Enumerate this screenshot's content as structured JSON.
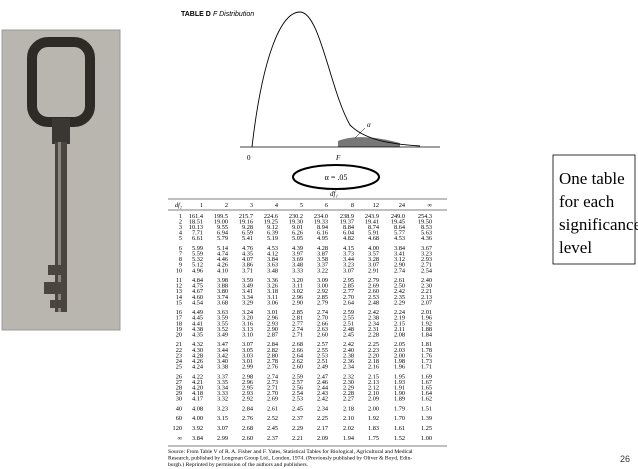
{
  "header": {
    "table_label": "TABLE D",
    "table_title": "F Distribution",
    "slide_number": "26"
  },
  "figure": {
    "origin_label": "0",
    "f_label": "F",
    "alpha_label": "α",
    "alpha_value": "α = .05",
    "df1_label": "df₁"
  },
  "side_note": {
    "lines": [
      "One table",
      "for each",
      "significance",
      "level"
    ]
  },
  "table": {
    "header": [
      "df₂",
      "1",
      "2",
      "3",
      "4",
      "5",
      "6",
      "8",
      "12",
      "24",
      "∞"
    ],
    "rows": [
      [
        "1",
        "161.4",
        "199.5",
        "215.7",
        "224.6",
        "230.2",
        "234.0",
        "238.9",
        "243.9",
        "249.0",
        "254.3"
      ],
      [
        "2",
        "18.51",
        "19.00",
        "19.16",
        "19.25",
        "19.30",
        "19.33",
        "19.37",
        "19.41",
        "19.45",
        "19.50"
      ],
      [
        "3",
        "10.13",
        "9.55",
        "9.28",
        "9.12",
        "9.01",
        "8.94",
        "8.84",
        "8.74",
        "8.64",
        "8.53"
      ],
      [
        "4",
        "7.71",
        "6.94",
        "6.59",
        "6.39",
        "6.26",
        "6.16",
        "6.04",
        "5.91",
        "5.77",
        "5.63"
      ],
      [
        "5",
        "6.61",
        "5.79",
        "5.41",
        "5.19",
        "5.05",
        "4.95",
        "4.82",
        "4.68",
        "4.53",
        "4.36"
      ],
      [
        "6",
        "5.99",
        "5.14",
        "4.76",
        "4.53",
        "4.39",
        "4.28",
        "4.15",
        "4.00",
        "3.84",
        "3.67"
      ],
      [
        "7",
        "5.59",
        "4.74",
        "4.35",
        "4.12",
        "3.97",
        "3.87",
        "3.73",
        "3.57",
        "3.41",
        "3.23"
      ],
      [
        "8",
        "5.32",
        "4.46",
        "4.07",
        "3.84",
        "3.69",
        "3.58",
        "3.44",
        "3.28",
        "3.12",
        "2.93"
      ],
      [
        "9",
        "5.12",
        "4.26",
        "3.86",
        "3.63",
        "3.48",
        "3.37",
        "3.23",
        "3.07",
        "2.90",
        "2.71"
      ],
      [
        "10",
        "4.96",
        "4.10",
        "3.71",
        "3.48",
        "3.33",
        "3.22",
        "3.07",
        "2.91",
        "2.74",
        "2.54"
      ],
      [
        "11",
        "4.84",
        "3.98",
        "3.59",
        "3.36",
        "3.20",
        "3.09",
        "2.95",
        "2.79",
        "2.61",
        "2.40"
      ],
      [
        "12",
        "4.75",
        "3.88",
        "3.49",
        "3.26",
        "3.11",
        "3.00",
        "2.85",
        "2.69",
        "2.50",
        "2.30"
      ],
      [
        "13",
        "4.67",
        "3.80",
        "3.41",
        "3.18",
        "3.02",
        "2.92",
        "2.77",
        "2.60",
        "2.42",
        "2.21"
      ],
      [
        "14",
        "4.60",
        "3.74",
        "3.34",
        "3.11",
        "2.96",
        "2.85",
        "2.70",
        "2.53",
        "2.35",
        "2.13"
      ],
      [
        "15",
        "4.54",
        "3.68",
        "3.29",
        "3.06",
        "2.90",
        "2.79",
        "2.64",
        "2.48",
        "2.29",
        "2.07"
      ],
      [
        "16",
        "4.49",
        "3.63",
        "3.24",
        "3.01",
        "2.85",
        "2.74",
        "2.59",
        "2.42",
        "2.24",
        "2.01"
      ],
      [
        "17",
        "4.45",
        "3.59",
        "3.20",
        "2.96",
        "2.81",
        "2.70",
        "2.55",
        "2.38",
        "2.19",
        "1.96"
      ],
      [
        "18",
        "4.41",
        "3.55",
        "3.16",
        "2.93",
        "2.77",
        "2.66",
        "2.51",
        "2.34",
        "2.15",
        "1.92"
      ],
      [
        "19",
        "4.38",
        "3.52",
        "3.13",
        "2.90",
        "2.74",
        "2.63",
        "2.48",
        "2.31",
        "2.11",
        "1.88"
      ],
      [
        "20",
        "4.35",
        "3.49",
        "3.10",
        "2.87",
        "2.71",
        "2.60",
        "2.45",
        "2.28",
        "2.08",
        "1.84"
      ],
      [
        "21",
        "4.32",
        "3.47",
        "3.07",
        "2.84",
        "2.68",
        "2.57",
        "2.42",
        "2.25",
        "2.05",
        "1.81"
      ],
      [
        "22",
        "4.30",
        "3.44",
        "3.05",
        "2.82",
        "2.66",
        "2.55",
        "2.40",
        "2.23",
        "2.03",
        "1.78"
      ],
      [
        "23",
        "4.28",
        "3.42",
        "3.03",
        "2.80",
        "2.64",
        "2.53",
        "2.38",
        "2.20",
        "2.00",
        "1.76"
      ],
      [
        "24",
        "4.26",
        "3.40",
        "3.01",
        "2.78",
        "2.62",
        "2.51",
        "2.36",
        "2.18",
        "1.98",
        "1.73"
      ],
      [
        "25",
        "4.24",
        "3.38",
        "2.99",
        "2.76",
        "2.60",
        "2.49",
        "2.34",
        "2.16",
        "1.96",
        "1.71"
      ],
      [
        "26",
        "4.22",
        "3.37",
        "2.98",
        "2.74",
        "2.59",
        "2.47",
        "2.32",
        "2.15",
        "1.95",
        "1.69"
      ],
      [
        "27",
        "4.21",
        "3.35",
        "2.96",
        "2.73",
        "2.57",
        "2.46",
        "2.30",
        "2.13",
        "1.93",
        "1.67"
      ],
      [
        "28",
        "4.20",
        "3.34",
        "2.95",
        "2.71",
        "2.56",
        "2.44",
        "2.29",
        "2.12",
        "1.91",
        "1.65"
      ],
      [
        "29",
        "4.18",
        "3.33",
        "2.93",
        "2.70",
        "2.54",
        "2.43",
        "2.28",
        "2.10",
        "1.90",
        "1.64"
      ],
      [
        "30",
        "4.17",
        "3.32",
        "2.92",
        "2.69",
        "2.53",
        "2.42",
        "2.27",
        "2.09",
        "1.89",
        "1.62"
      ],
      [
        "40",
        "4.08",
        "3.23",
        "2.84",
        "2.61",
        "2.45",
        "2.34",
        "2.18",
        "2.00",
        "1.79",
        "1.51"
      ],
      [
        "60",
        "4.00",
        "3.15",
        "2.76",
        "2.52",
        "2.37",
        "2.25",
        "2.10",
        "1.92",
        "1.70",
        "1.39"
      ],
      [
        "120",
        "3.92",
        "3.07",
        "2.68",
        "2.45",
        "2.29",
        "2.17",
        "2.02",
        "1.83",
        "1.61",
        "1.25"
      ],
      [
        "∞",
        "3.84",
        "2.99",
        "2.60",
        "2.37",
        "2.21",
        "2.09",
        "1.94",
        "1.75",
        "1.52",
        "1.00"
      ]
    ]
  },
  "source": {
    "lines": [
      "Source: From Table V of R. A. Fisher and F. Yates, Statistical Tables for Biological, Agricultural and Medical",
      "Research, published by Longman Group Ltd., London, 1974. (Previously published by Oliver & Boyd, Edin-",
      "burgh.) Reprinted by permission of the authors and publishers."
    ]
  }
}
